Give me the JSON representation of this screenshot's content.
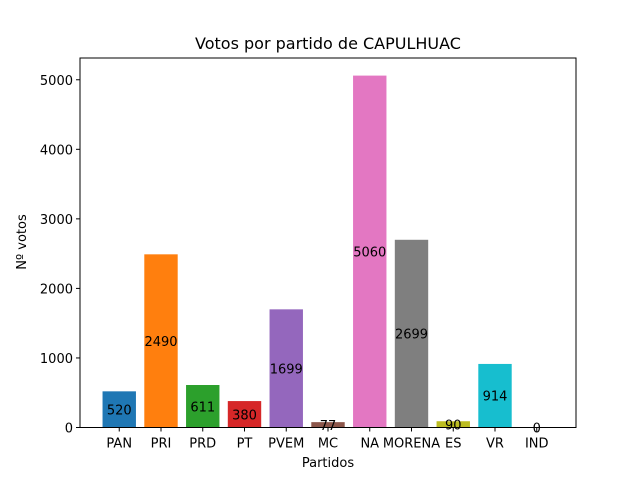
{
  "chart_data": {
    "type": "bar",
    "title": "Votos por partido de CAPULHUAC",
    "xlabel": "Partidos",
    "ylabel": "Nº votos",
    "categories": [
      "PAN",
      "PRI",
      "PRD",
      "PT",
      "PVEM",
      "MC",
      "NA",
      "MORENA",
      "ES",
      "VR",
      "IND"
    ],
    "values": [
      520,
      2490,
      611,
      380,
      1699,
      77,
      5060,
      2699,
      90,
      914,
      0
    ],
    "data_labels": [
      "520",
      "2490",
      "611",
      "380",
      "1699",
      "77",
      "5060",
      "2699",
      "90",
      "914",
      "0"
    ],
    "colors": [
      "#1f77b4",
      "#ff7f0e",
      "#2ca02c",
      "#d62728",
      "#9467bd",
      "#8c564b",
      "#e377c2",
      "#7f7f7f",
      "#bcbd22",
      "#17becf",
      "#1f77b4"
    ],
    "yticks": [
      0,
      1000,
      2000,
      3000,
      4000,
      5000
    ],
    "ytick_labels": [
      "0",
      "1000",
      "2000",
      "3000",
      "4000",
      "5000"
    ],
    "ylim": [
      0,
      5313
    ],
    "grid": false,
    "legend": "none"
  }
}
